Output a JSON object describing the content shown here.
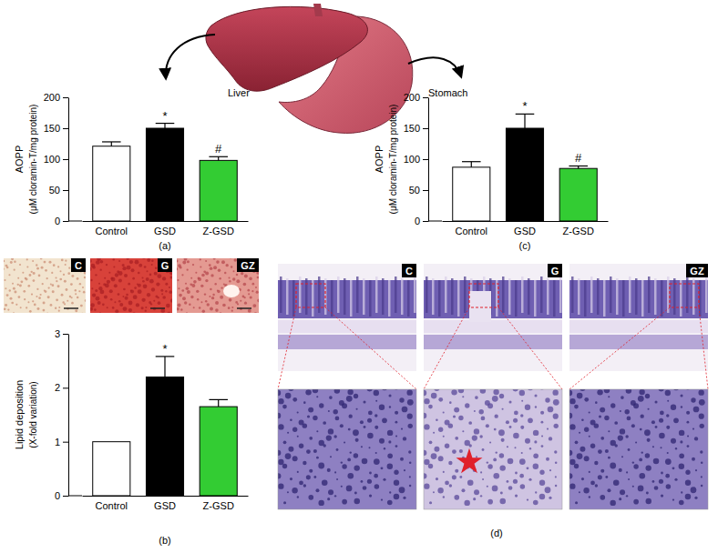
{
  "chart_data": [
    {
      "type": "bar",
      "title": "(a)",
      "ylabel": [
        "AOPP",
        "(μM cloramin-T/mg protein)"
      ],
      "categories": [
        "Control",
        "GSD",
        "Z-GSD"
      ],
      "values": [
        121,
        150,
        98
      ],
      "errors": [
        7,
        8,
        6
      ],
      "colors": [
        "#ffffff",
        "#000000",
        "#33cc33"
      ],
      "ylim": [
        0,
        200
      ],
      "yticks": [
        0,
        50,
        100,
        150,
        200
      ],
      "annotations": [
        {
          "category": "GSD",
          "text": "*"
        },
        {
          "category": "Z-GSD",
          "text": "#"
        }
      ]
    },
    {
      "type": "bar",
      "title": "(b)",
      "ylabel": [
        "Lipid deposition",
        "(X-fold variation)"
      ],
      "categories": [
        "Control",
        "GSD",
        "Z-GSD"
      ],
      "values": [
        1,
        2.2,
        1.65
      ],
      "errors": [
        null,
        0.38,
        0.13
      ],
      "colors": [
        "#ffffff",
        "#000000",
        "#33cc33"
      ],
      "ylim": [
        0,
        3
      ],
      "yticks": [
        0,
        1,
        2,
        3
      ],
      "annotations": [
        {
          "category": "GSD",
          "text": "*"
        }
      ]
    },
    {
      "type": "bar",
      "title": "(c)",
      "ylabel": [
        "AOPP",
        "(μM cloramin-T/mg protein)"
      ],
      "categories": [
        "Control",
        "GSD",
        "Z-GSD"
      ],
      "values": [
        87,
        150,
        85
      ],
      "errors": [
        9,
        23,
        4
      ],
      "colors": [
        "#ffffff",
        "#000000",
        "#33cc33"
      ],
      "ylim": [
        0,
        200
      ],
      "yticks": [
        0,
        50,
        100,
        150,
        200
      ],
      "annotations": [
        {
          "category": "GSD",
          "text": "*"
        },
        {
          "category": "Z-GSD",
          "text": "#"
        }
      ]
    }
  ],
  "figure": {
    "organs": [
      "Liver",
      "Stomach"
    ],
    "liver_micrographs": [
      "C",
      "G",
      "GZ"
    ],
    "stomach_micrographs": {
      "title": "(d)",
      "labels": [
        "C",
        "G",
        "GZ"
      ]
    }
  }
}
